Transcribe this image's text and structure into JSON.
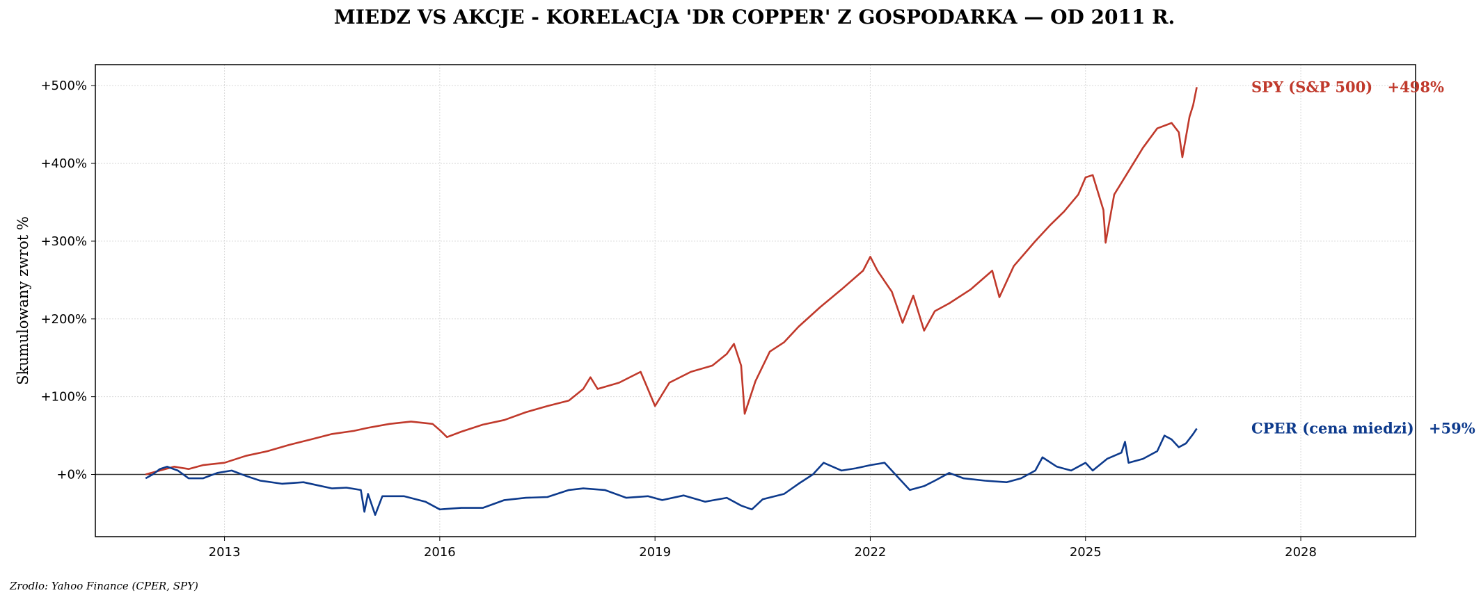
{
  "chart_data": {
    "type": "line",
    "title": "MIEDZ VS AKCJE - KORELACJA 'DR COPPER' Z GOSPODARKA — OD 2011 R.",
    "ylabel": "Skumulowany zwrot %",
    "xlabel": "",
    "xlim": [
      2011.2,
      2029.6
    ],
    "ylim": [
      -80,
      527
    ],
    "x_ticks": [
      2013,
      2016,
      2019,
      2022,
      2025,
      2028
    ],
    "y_ticks": [
      0,
      100,
      200,
      300,
      400,
      500
    ],
    "y_tick_labels": [
      "+0%",
      "+100%",
      "+200%",
      "+300%",
      "+400%",
      "+500%"
    ],
    "grid": true,
    "zero_line": true,
    "source": "Zrodlo: Yahoo Finance (CPER, SPY)",
    "series": [
      {
        "name": "SPY (S&P 500)",
        "end_label": "+498%",
        "color": "#c0392b",
        "points": [
          [
            2011.9,
            0
          ],
          [
            2012.1,
            5
          ],
          [
            2012.3,
            10
          ],
          [
            2012.5,
            7
          ],
          [
            2012.7,
            12
          ],
          [
            2013.0,
            15
          ],
          [
            2013.3,
            24
          ],
          [
            2013.6,
            30
          ],
          [
            2013.9,
            38
          ],
          [
            2014.2,
            45
          ],
          [
            2014.5,
            52
          ],
          [
            2014.8,
            56
          ],
          [
            2015.0,
            60
          ],
          [
            2015.3,
            65
          ],
          [
            2015.6,
            68
          ],
          [
            2015.9,
            65
          ],
          [
            2016.0,
            57
          ],
          [
            2016.1,
            48
          ],
          [
            2016.3,
            55
          ],
          [
            2016.6,
            64
          ],
          [
            2016.9,
            70
          ],
          [
            2017.2,
            80
          ],
          [
            2017.5,
            88
          ],
          [
            2017.8,
            95
          ],
          [
            2018.0,
            110
          ],
          [
            2018.1,
            125
          ],
          [
            2018.2,
            110
          ],
          [
            2018.5,
            118
          ],
          [
            2018.8,
            132
          ],
          [
            2018.9,
            110
          ],
          [
            2019.0,
            88
          ],
          [
            2019.2,
            118
          ],
          [
            2019.5,
            132
          ],
          [
            2019.8,
            140
          ],
          [
            2020.0,
            155
          ],
          [
            2020.1,
            168
          ],
          [
            2020.2,
            140
          ],
          [
            2020.25,
            78
          ],
          [
            2020.4,
            120
          ],
          [
            2020.6,
            158
          ],
          [
            2020.8,
            170
          ],
          [
            2021.0,
            190
          ],
          [
            2021.3,
            215
          ],
          [
            2021.6,
            238
          ],
          [
            2021.9,
            262
          ],
          [
            2022.0,
            280
          ],
          [
            2022.1,
            262
          ],
          [
            2022.3,
            235
          ],
          [
            2022.45,
            195
          ],
          [
            2022.6,
            230
          ],
          [
            2022.75,
            185
          ],
          [
            2022.9,
            210
          ],
          [
            2023.1,
            220
          ],
          [
            2023.4,
            238
          ],
          [
            2023.7,
            262
          ],
          [
            2023.8,
            228
          ],
          [
            2024.0,
            268
          ],
          [
            2024.3,
            300
          ],
          [
            2024.5,
            320
          ],
          [
            2024.7,
            338
          ],
          [
            2024.9,
            360
          ],
          [
            2025.0,
            382
          ],
          [
            2025.1,
            385
          ],
          [
            2025.25,
            340
          ],
          [
            2025.28,
            298
          ],
          [
            2025.4,
            360
          ],
          [
            2025.6,
            390
          ],
          [
            2025.8,
            420
          ],
          [
            2026.0,
            445
          ],
          [
            2026.2,
            452
          ],
          [
            2026.3,
            440
          ],
          [
            2026.35,
            408
          ],
          [
            2026.45,
            460
          ],
          [
            2026.5,
            475
          ],
          [
            2026.55,
            498
          ]
        ]
      },
      {
        "name": "CPER (cena miedzi)",
        "end_label": "+59%",
        "color": "#0d3a8c",
        "points": [
          [
            2011.9,
            -5
          ],
          [
            2012.0,
            0
          ],
          [
            2012.1,
            7
          ],
          [
            2012.2,
            10
          ],
          [
            2012.35,
            5
          ],
          [
            2012.5,
            -5
          ],
          [
            2012.7,
            -5
          ],
          [
            2012.9,
            2
          ],
          [
            2013.1,
            5
          ],
          [
            2013.3,
            -2
          ],
          [
            2013.5,
            -8
          ],
          [
            2013.8,
            -12
          ],
          [
            2014.1,
            -10
          ],
          [
            2014.3,
            -14
          ],
          [
            2014.5,
            -18
          ],
          [
            2014.7,
            -17
          ],
          [
            2014.9,
            -20
          ],
          [
            2014.95,
            -48
          ],
          [
            2015.0,
            -25
          ],
          [
            2015.1,
            -52
          ],
          [
            2015.2,
            -28
          ],
          [
            2015.5,
            -28
          ],
          [
            2015.8,
            -35
          ],
          [
            2016.0,
            -45
          ],
          [
            2016.3,
            -43
          ],
          [
            2016.6,
            -43
          ],
          [
            2016.9,
            -33
          ],
          [
            2017.2,
            -30
          ],
          [
            2017.5,
            -29
          ],
          [
            2017.8,
            -20
          ],
          [
            2018.0,
            -18
          ],
          [
            2018.3,
            -20
          ],
          [
            2018.6,
            -30
          ],
          [
            2018.9,
            -28
          ],
          [
            2019.1,
            -33
          ],
          [
            2019.4,
            -27
          ],
          [
            2019.7,
            -35
          ],
          [
            2020.0,
            -30
          ],
          [
            2020.2,
            -40
          ],
          [
            2020.35,
            -45
          ],
          [
            2020.5,
            -32
          ],
          [
            2020.8,
            -25
          ],
          [
            2021.0,
            -12
          ],
          [
            2021.2,
            0
          ],
          [
            2021.35,
            15
          ],
          [
            2021.6,
            5
          ],
          [
            2021.8,
            8
          ],
          [
            2022.0,
            12
          ],
          [
            2022.2,
            15
          ],
          [
            2022.4,
            -5
          ],
          [
            2022.55,
            -20
          ],
          [
            2022.75,
            -15
          ],
          [
            2022.9,
            -8
          ],
          [
            2023.1,
            2
          ],
          [
            2023.3,
            -5
          ],
          [
            2023.6,
            -8
          ],
          [
            2023.9,
            -10
          ],
          [
            2024.1,
            -5
          ],
          [
            2024.3,
            5
          ],
          [
            2024.4,
            22
          ],
          [
            2024.6,
            10
          ],
          [
            2024.8,
            5
          ],
          [
            2025.0,
            15
          ],
          [
            2025.1,
            5
          ],
          [
            2025.3,
            20
          ],
          [
            2025.5,
            28
          ],
          [
            2025.55,
            42
          ],
          [
            2025.6,
            15
          ],
          [
            2025.8,
            20
          ],
          [
            2026.0,
            30
          ],
          [
            2026.1,
            50
          ],
          [
            2026.2,
            45
          ],
          [
            2026.3,
            35
          ],
          [
            2026.4,
            40
          ],
          [
            2026.5,
            52
          ],
          [
            2026.55,
            59
          ]
        ]
      }
    ]
  }
}
